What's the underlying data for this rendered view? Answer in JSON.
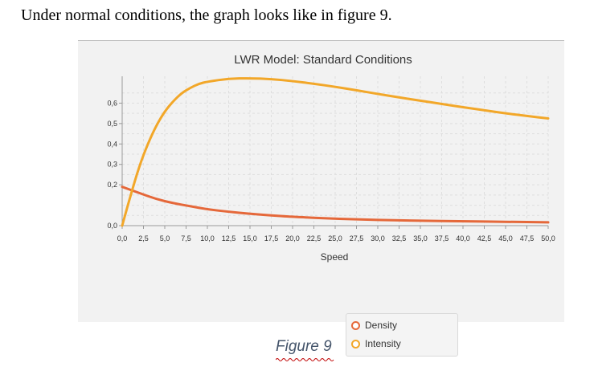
{
  "document": {
    "intro_text": "Under normal conditions, the graph looks like in figure 9.",
    "caption": "Figure 9"
  },
  "chart_data": {
    "type": "line",
    "title": "LWR Model: Standard Conditions",
    "xlabel": "Speed",
    "ylabel": "",
    "xlim": [
      0,
      50
    ],
    "ylim": [
      0,
      0.7
    ],
    "grid": true,
    "legend_position": "bottom-center",
    "x_ticks": [
      "0,0",
      "2,5",
      "5,0",
      "7,5",
      "10,0",
      "12,5",
      "15,0",
      "17,5",
      "20,0",
      "22,5",
      "25,0",
      "27,5",
      "30,0",
      "32,5",
      "35,0",
      "37,5",
      "40,0",
      "42,5",
      "45,0",
      "47,5",
      "50,0"
    ],
    "y_ticks": [
      {
        "value": 0.0,
        "label": "0,0"
      },
      {
        "value": 0.2,
        "label": "0,2"
      },
      {
        "value": 0.3,
        "label": "0,3"
      },
      {
        "value": 0.4,
        "label": "0,4"
      },
      {
        "value": 0.5,
        "label": "0,5"
      },
      {
        "value": 0.6,
        "label": "0,6"
      }
    ],
    "series": [
      {
        "name": "Density",
        "color": "#e5683a",
        "x": [
          0,
          2,
          4,
          6,
          8,
          10,
          12.5,
          15,
          17.5,
          20,
          25,
          30,
          35,
          40,
          45,
          50
        ],
        "y": [
          0.19,
          0.16,
          0.13,
          0.11,
          0.095,
          0.08,
          0.068,
          0.058,
          0.05,
          0.043,
          0.034,
          0.028,
          0.024,
          0.021,
          0.019,
          0.016
        ]
      },
      {
        "name": "Intensity",
        "color": "#f2a729",
        "x": [
          0,
          1,
          2,
          3,
          4,
          5,
          6,
          7,
          8,
          9,
          10,
          12.5,
          15,
          17.5,
          20,
          22.5,
          25,
          27.5,
          30,
          32.5,
          35,
          37.5,
          40,
          42.5,
          45,
          47.5,
          50
        ],
        "y": [
          0.0,
          0.15,
          0.29,
          0.4,
          0.49,
          0.56,
          0.61,
          0.65,
          0.675,
          0.695,
          0.705,
          0.72,
          0.722,
          0.718,
          0.708,
          0.695,
          0.68,
          0.663,
          0.645,
          0.628,
          0.612,
          0.596,
          0.58,
          0.565,
          0.55,
          0.537,
          0.525
        ]
      }
    ]
  }
}
